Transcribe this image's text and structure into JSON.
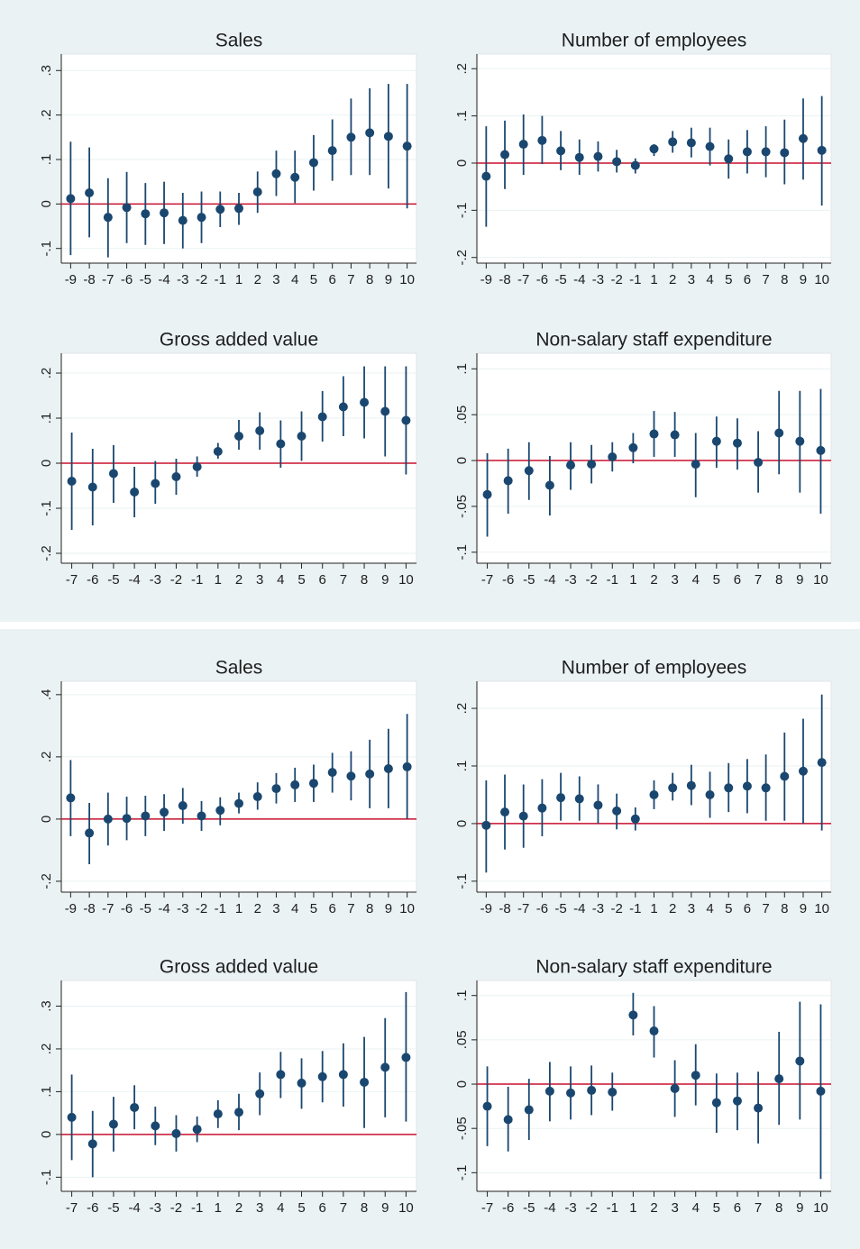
{
  "chart_data": [
    {
      "type": "errorbar",
      "title": "Sales",
      "color": "#1a476f",
      "hline": 0,
      "hline_color": "#c8102e",
      "grid": true,
      "categories": [
        -9,
        -8,
        -7,
        -6,
        -5,
        -4,
        -3,
        -2,
        -1,
        1,
        2,
        3,
        4,
        5,
        6,
        7,
        8,
        9,
        10
      ],
      "values": [
        0.012,
        0.025,
        -0.03,
        -0.008,
        -0.022,
        -0.02,
        -0.037,
        -0.03,
        -0.012,
        -0.01,
        0.027,
        0.068,
        0.06,
        0.093,
        0.12,
        0.15,
        0.16,
        0.152,
        0.13
      ],
      "lower": [
        -0.115,
        -0.075,
        -0.12,
        -0.088,
        -0.092,
        -0.09,
        -0.1,
        -0.088,
        -0.052,
        -0.047,
        -0.02,
        0.018,
        0.002,
        0.03,
        0.052,
        0.065,
        0.065,
        0.035,
        -0.01
      ],
      "upper": [
        0.14,
        0.127,
        0.058,
        0.072,
        0.047,
        0.05,
        0.025,
        0.028,
        0.028,
        0.025,
        0.073,
        0.12,
        0.12,
        0.155,
        0.19,
        0.237,
        0.26,
        0.27,
        0.27
      ],
      "ylim": [
        -0.133,
        0.337
      ],
      "yticks": [
        {
          "value": -0.1,
          "label": "-.1"
        },
        0,
        {
          "value": 0.1,
          "label": ".1"
        },
        {
          "value": 0.2,
          "label": ".2"
        },
        {
          "value": 0.3,
          "label": ".3"
        }
      ]
    },
    {
      "type": "errorbar",
      "title": "Number of employees",
      "color": "#1a476f",
      "hline": 0,
      "hline_color": "#c8102e",
      "grid": true,
      "categories": [
        -9,
        -8,
        -7,
        -6,
        -5,
        -4,
        -3,
        -2,
        -1,
        1,
        2,
        3,
        4,
        5,
        6,
        7,
        8,
        9,
        10
      ],
      "values": [
        -0.028,
        0.018,
        0.04,
        0.048,
        0.026,
        0.012,
        0.014,
        0.003,
        -0.005,
        0.03,
        0.045,
        0.043,
        0.035,
        0.009,
        0.024,
        0.024,
        0.022,
        0.052,
        0.027
      ],
      "lower": [
        -0.135,
        -0.055,
        -0.025,
        -0.002,
        -0.015,
        -0.025,
        -0.018,
        -0.02,
        -0.022,
        0.015,
        0.022,
        0.012,
        -0.005,
        -0.033,
        -0.022,
        -0.03,
        -0.045,
        -0.035,
        -0.09
      ],
      "upper": [
        0.078,
        0.09,
        0.103,
        0.1,
        0.068,
        0.05,
        0.046,
        0.028,
        0.01,
        0.04,
        0.068,
        0.075,
        0.075,
        0.05,
        0.07,
        0.078,
        0.092,
        0.137,
        0.142
      ],
      "ylim": [
        -0.212,
        0.231
      ],
      "yticks": [
        {
          "value": -0.2,
          "label": "-.2"
        },
        {
          "value": -0.1,
          "label": "-.1"
        },
        0,
        {
          "value": 0.1,
          "label": ".1"
        },
        {
          "value": 0.2,
          "label": ".2"
        }
      ]
    },
    {
      "type": "errorbar",
      "title": "Gross added value",
      "color": "#1a476f",
      "hline": 0,
      "hline_color": "#c8102e",
      "grid": true,
      "categories": [
        -7,
        -6,
        -5,
        -4,
        -3,
        -2,
        -1,
        1,
        2,
        3,
        4,
        5,
        6,
        7,
        8,
        9,
        10
      ],
      "values": [
        -0.04,
        -0.053,
        -0.023,
        -0.064,
        -0.045,
        -0.03,
        -0.008,
        0.026,
        0.06,
        0.072,
        0.043,
        0.06,
        0.103,
        0.125,
        0.135,
        0.115,
        0.095
      ],
      "lower": [
        -0.148,
        -0.138,
        -0.088,
        -0.12,
        -0.09,
        -0.07,
        -0.03,
        0.01,
        0.03,
        0.03,
        -0.01,
        0.005,
        0.048,
        0.06,
        0.055,
        0.015,
        -0.025
      ],
      "upper": [
        0.068,
        0.032,
        0.04,
        -0.008,
        0.005,
        0.01,
        0.015,
        0.045,
        0.096,
        0.113,
        0.095,
        0.115,
        0.16,
        0.193,
        0.215,
        0.215,
        0.215
      ],
      "ylim": [
        -0.222,
        0.244
      ],
      "yticks": [
        {
          "value": -0.2,
          "label": "-.2"
        },
        {
          "value": -0.1,
          "label": "-.1"
        },
        0,
        {
          "value": 0.1,
          "label": ".1"
        },
        {
          "value": 0.2,
          "label": ".2"
        }
      ]
    },
    {
      "type": "errorbar",
      "title": "Non-salary staff expenditure",
      "color": "#1a476f",
      "hline": 0,
      "hline_color": "#c8102e",
      "grid": true,
      "categories": [
        -7,
        -6,
        -5,
        -4,
        -3,
        -2,
        -1,
        1,
        2,
        3,
        4,
        5,
        6,
        7,
        8,
        9,
        10
      ],
      "values": [
        -0.037,
        -0.022,
        -0.011,
        -0.027,
        -0.005,
        -0.004,
        0.004,
        0.014,
        0.029,
        0.028,
        -0.004,
        0.021,
        0.019,
        -0.002,
        0.03,
        0.021,
        0.011
      ],
      "lower": [
        -0.083,
        -0.058,
        -0.043,
        -0.06,
        -0.032,
        -0.025,
        -0.012,
        -0.003,
        0.004,
        0.004,
        -0.04,
        -0.008,
        -0.01,
        -0.035,
        -0.015,
        -0.035,
        -0.058
      ],
      "upper": [
        0.008,
        0.013,
        0.02,
        0.005,
        0.02,
        0.017,
        0.02,
        0.03,
        0.054,
        0.053,
        0.03,
        0.048,
        0.046,
        0.032,
        0.076,
        0.076,
        0.078
      ],
      "ylim": [
        -0.112,
        0.117
      ],
      "yticks": [
        {
          "value": -0.1,
          "label": "-.1"
        },
        {
          "value": -0.05,
          "label": "-.05"
        },
        0,
        {
          "value": 0.05,
          "label": ".05"
        },
        {
          "value": 0.1,
          "label": ".1"
        }
      ]
    },
    {
      "type": "errorbar",
      "title": "Sales",
      "color": "#1a476f",
      "hline": 0,
      "hline_color": "#c8102e",
      "grid": true,
      "categories": [
        -9,
        -8,
        -7,
        -6,
        -5,
        -4,
        -3,
        -2,
        -1,
        1,
        2,
        3,
        4,
        5,
        6,
        7,
        8,
        9,
        10
      ],
      "values": [
        0.068,
        -0.045,
        0.0,
        0.002,
        0.01,
        0.022,
        0.043,
        0.01,
        0.028,
        0.05,
        0.072,
        0.098,
        0.11,
        0.115,
        0.15,
        0.138,
        0.145,
        0.162,
        0.168
      ],
      "lower": [
        -0.055,
        -0.145,
        -0.085,
        -0.068,
        -0.055,
        -0.038,
        -0.015,
        -0.038,
        -0.02,
        0.018,
        0.03,
        0.05,
        0.055,
        0.055,
        0.085,
        0.06,
        0.035,
        0.035,
        0.0
      ],
      "upper": [
        0.19,
        0.052,
        0.085,
        0.072,
        0.075,
        0.08,
        0.1,
        0.058,
        0.07,
        0.085,
        0.118,
        0.148,
        0.165,
        0.175,
        0.213,
        0.218,
        0.255,
        0.29,
        0.338
      ],
      "ylim": [
        -0.235,
        0.443
      ],
      "yticks": [
        {
          "value": -0.2,
          "label": "-.2"
        },
        0,
        {
          "value": 0.2,
          "label": ".2"
        },
        {
          "value": 0.4,
          "label": ".4"
        }
      ]
    },
    {
      "type": "errorbar",
      "title": "Number of employees",
      "color": "#1a476f",
      "hline": 0,
      "hline_color": "#c8102e",
      "grid": true,
      "categories": [
        -9,
        -8,
        -7,
        -6,
        -5,
        -4,
        -3,
        -2,
        -1,
        1,
        2,
        3,
        4,
        5,
        6,
        7,
        8,
        9,
        10
      ],
      "values": [
        -0.003,
        0.02,
        0.013,
        0.027,
        0.045,
        0.043,
        0.032,
        0.022,
        0.008,
        0.05,
        0.062,
        0.066,
        0.05,
        0.062,
        0.065,
        0.062,
        0.082,
        0.091,
        0.106
      ],
      "lower": [
        -0.085,
        -0.045,
        -0.042,
        -0.022,
        0.005,
        0.005,
        0.0,
        -0.01,
        -0.012,
        0.025,
        0.04,
        0.032,
        0.01,
        0.02,
        0.018,
        0.005,
        0.005,
        0.0,
        -0.012
      ],
      "upper": [
        0.075,
        0.085,
        0.068,
        0.077,
        0.088,
        0.082,
        0.068,
        0.052,
        0.028,
        0.075,
        0.088,
        0.102,
        0.09,
        0.105,
        0.112,
        0.12,
        0.158,
        0.182,
        0.224
      ],
      "ylim": [
        -0.119,
        0.247
      ],
      "yticks": [
        {
          "value": -0.1,
          "label": "-.1"
        },
        0,
        {
          "value": 0.1,
          "label": ".1"
        },
        {
          "value": 0.2,
          "label": ".2"
        }
      ]
    },
    {
      "type": "errorbar",
      "title": "Gross added value",
      "color": "#1a476f",
      "hline": 0,
      "hline_color": "#c8102e",
      "grid": true,
      "categories": [
        -7,
        -6,
        -5,
        -4,
        -3,
        -2,
        -1,
        1,
        2,
        3,
        4,
        5,
        6,
        7,
        8,
        9,
        10
      ],
      "values": [
        0.04,
        -0.022,
        0.024,
        0.063,
        0.02,
        0.002,
        0.012,
        0.048,
        0.052,
        0.095,
        0.14,
        0.12,
        0.135,
        0.14,
        0.122,
        0.157,
        0.18
      ],
      "lower": [
        -0.06,
        -0.1,
        -0.04,
        0.012,
        -0.025,
        -0.04,
        -0.018,
        0.015,
        0.01,
        0.045,
        0.085,
        0.06,
        0.075,
        0.065,
        0.015,
        0.04,
        0.03
      ],
      "upper": [
        0.14,
        0.055,
        0.088,
        0.115,
        0.065,
        0.045,
        0.042,
        0.08,
        0.095,
        0.145,
        0.193,
        0.178,
        0.195,
        0.213,
        0.228,
        0.272,
        0.333
      ],
      "ylim": [
        -0.133,
        0.36
      ],
      "yticks": [
        {
          "value": -0.1,
          "label": "-.1"
        },
        0,
        {
          "value": 0.1,
          "label": ".1"
        },
        {
          "value": 0.2,
          "label": ".2"
        },
        {
          "value": 0.3,
          "label": ".3"
        }
      ]
    },
    {
      "type": "errorbar",
      "title": "Non-salary staff expenditure",
      "color": "#1a476f",
      "hline": 0,
      "hline_color": "#c8102e",
      "grid": true,
      "categories": [
        -7,
        -6,
        -5,
        -4,
        -3,
        -2,
        -1,
        1,
        2,
        3,
        4,
        5,
        6,
        7,
        8,
        9,
        10
      ],
      "values": [
        -0.025,
        -0.04,
        -0.029,
        -0.008,
        -0.01,
        -0.007,
        -0.009,
        0.078,
        0.06,
        -0.005,
        0.01,
        -0.021,
        -0.019,
        -0.027,
        0.006,
        0.026,
        -0.008
      ],
      "lower": [
        -0.07,
        -0.076,
        -0.063,
        -0.042,
        -0.04,
        -0.035,
        -0.03,
        0.055,
        0.03,
        -0.037,
        -0.024,
        -0.055,
        -0.052,
        -0.067,
        -0.046,
        -0.04,
        -0.107
      ],
      "upper": [
        0.02,
        -0.003,
        0.006,
        0.025,
        0.02,
        0.021,
        0.013,
        0.103,
        0.088,
        0.027,
        0.045,
        0.012,
        0.013,
        0.014,
        0.059,
        0.093,
        0.09
      ],
      "ylim": [
        -0.121,
        0.117
      ],
      "yticks": [
        {
          "value": -0.1,
          "label": "-.1"
        },
        {
          "value": -0.05,
          "label": "-.05"
        },
        0,
        {
          "value": 0.05,
          "label": ".05"
        },
        {
          "value": 0.1,
          "label": ".1"
        }
      ]
    }
  ]
}
